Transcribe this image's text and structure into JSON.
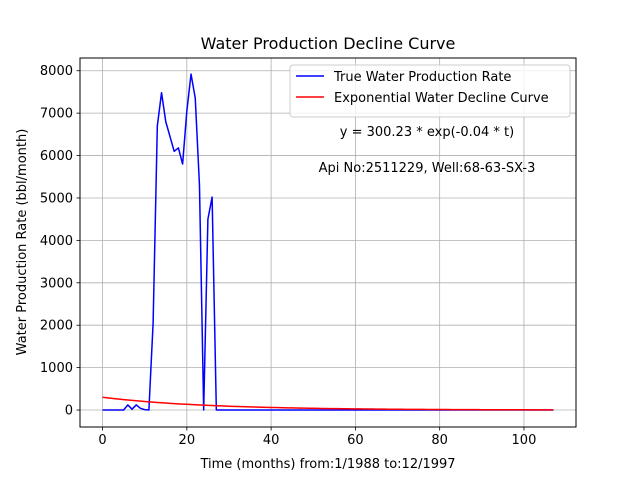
{
  "chart_data": {
    "type": "line",
    "title": "Water Production Decline Curve",
    "xlabel": "Time (months) from:1/1988 to:12/1997",
    "ylabel": "Water Production Rate (bbl/month)",
    "xlim": [
      -5.35,
      112.35
    ],
    "ylim": [
      -400,
      8300
    ],
    "xticks": [
      0,
      20,
      40,
      60,
      80,
      100
    ],
    "yticks": [
      0,
      1000,
      2000,
      3000,
      4000,
      5000,
      6000,
      7000,
      8000
    ],
    "grid": true,
    "legend_position": "top-right",
    "annotations": [
      "y = 300.23 * exp(-0.04 * t)",
      "Api No:2511229, Well:68-63-SX-3"
    ],
    "series": [
      {
        "name": "True Water Production Rate",
        "color": "#0000ff",
        "x": [
          0,
          1,
          2,
          3,
          4,
          5,
          6,
          7,
          8,
          9,
          10,
          11,
          12,
          13,
          14,
          15,
          16,
          17,
          18,
          19,
          20,
          21,
          22,
          23,
          24,
          25,
          26,
          27,
          28,
          29,
          30,
          40,
          50,
          60,
          70,
          80,
          90,
          100,
          107
        ],
        "y": [
          0,
          0,
          0,
          0,
          0,
          0,
          120,
          20,
          120,
          40,
          10,
          0,
          2050,
          6700,
          7480,
          6800,
          6450,
          6100,
          6180,
          5800,
          7050,
          7920,
          7350,
          5300,
          0,
          4500,
          5020,
          0,
          0,
          0,
          0,
          0,
          0,
          0,
          0,
          0,
          0,
          0,
          0
        ]
      },
      {
        "name": "Exponential Water Decline Curve",
        "color": "#ff0000",
        "model": {
          "a": 300.23,
          "b": 0.04,
          "t_start": 0,
          "t_end": 107
        }
      }
    ]
  }
}
